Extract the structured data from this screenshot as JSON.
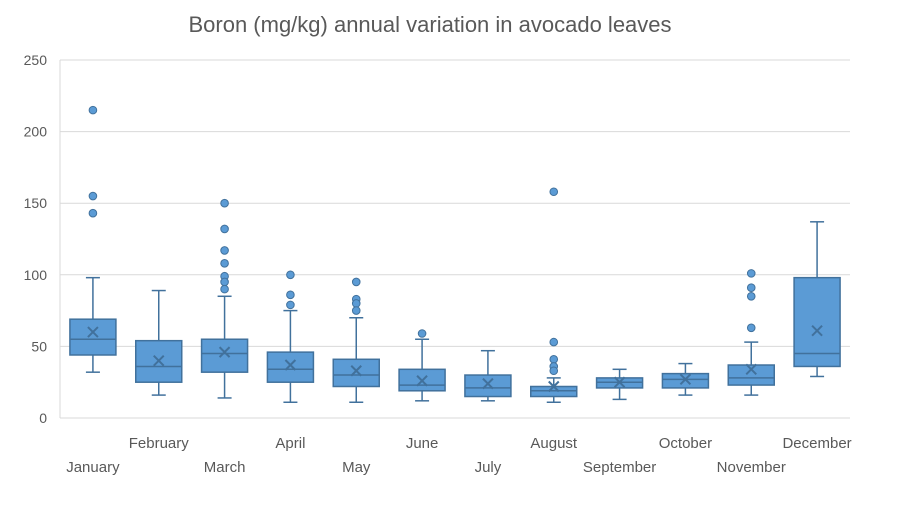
{
  "chart_data": {
    "type": "box",
    "title": "Boron (mg/kg) annual variation in avocado leaves",
    "xlabel": "",
    "ylabel": "",
    "ylim": [
      0,
      250
    ],
    "yticks": [
      0,
      50,
      100,
      150,
      200,
      250
    ],
    "grid": true,
    "color": "#5B9BD5",
    "edge_color": "#41719C",
    "categories": [
      "January",
      "February",
      "March",
      "April",
      "May",
      "June",
      "July",
      "August",
      "September",
      "October",
      "November",
      "December"
    ],
    "boxes": [
      {
        "q1": 44,
        "median": 55,
        "q3": 69,
        "whisker_low": 32,
        "whisker_high": 98,
        "mean": 60,
        "outliers": [
          215,
          155,
          143
        ]
      },
      {
        "q1": 25,
        "median": 36,
        "q3": 54,
        "whisker_low": 16,
        "whisker_high": 89,
        "mean": 40,
        "outliers": []
      },
      {
        "q1": 32,
        "median": 45,
        "q3": 55,
        "whisker_low": 14,
        "whisker_high": 85,
        "mean": 46,
        "outliers": [
          150,
          132,
          117,
          108,
          99,
          95,
          90
        ]
      },
      {
        "q1": 25,
        "median": 34,
        "q3": 46,
        "whisker_low": 11,
        "whisker_high": 75,
        "mean": 37,
        "outliers": [
          100,
          86,
          79
        ]
      },
      {
        "q1": 22,
        "median": 30,
        "q3": 41,
        "whisker_low": 11,
        "whisker_high": 70,
        "mean": 33,
        "outliers": [
          95,
          83,
          80,
          75
        ]
      },
      {
        "q1": 19,
        "median": 23,
        "q3": 34,
        "whisker_low": 12,
        "whisker_high": 55,
        "mean": 26,
        "outliers": [
          59
        ]
      },
      {
        "q1": 15,
        "median": 21,
        "q3": 30,
        "whisker_low": 12,
        "whisker_high": 47,
        "mean": 24,
        "outliers": []
      },
      {
        "q1": 15,
        "median": 19,
        "q3": 22,
        "whisker_low": 11,
        "whisker_high": 28,
        "mean": 22,
        "outliers": [
          158,
          53,
          41,
          36,
          33
        ]
      },
      {
        "q1": 21,
        "median": 25,
        "q3": 28,
        "whisker_low": 13,
        "whisker_high": 34,
        "mean": 25,
        "outliers": []
      },
      {
        "q1": 21,
        "median": 27,
        "q3": 31,
        "whisker_low": 16,
        "whisker_high": 38,
        "mean": 27,
        "outliers": []
      },
      {
        "q1": 23,
        "median": 28,
        "q3": 37,
        "whisker_low": 16,
        "whisker_high": 53,
        "mean": 34,
        "outliers": [
          101,
          91,
          85,
          63
        ]
      },
      {
        "q1": 36,
        "median": 45,
        "q3": 98,
        "whisker_low": 29,
        "whisker_high": 137,
        "mean": 61,
        "outliers": []
      }
    ]
  }
}
